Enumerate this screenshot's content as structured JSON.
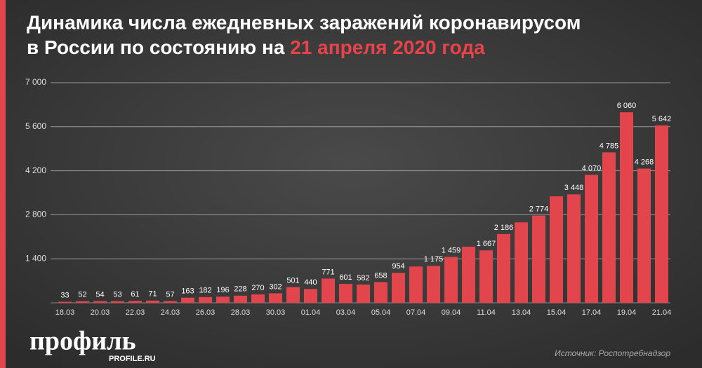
{
  "chart_data": {
    "type": "bar",
    "title": "Динамика числа ежедневных заражений коронавирусом",
    "subtitle": "в России по состоянию на",
    "subtitle_highlight": "21 апреля 2020 года",
    "categories": [
      "18.03",
      null,
      "20.03",
      null,
      "22.03",
      null,
      "24.03",
      null,
      "26.03",
      null,
      "28.03",
      null,
      "30.03",
      null,
      "01.04",
      null,
      "03.04",
      null,
      "05.04",
      null,
      "07.04",
      null,
      "09.04",
      null,
      "11.04",
      null,
      "13.04",
      null,
      "15.04",
      null,
      "17.04",
      null,
      "19.04",
      null,
      "21.04"
    ],
    "values": [
      33,
      52,
      54,
      53,
      61,
      71,
      57,
      163,
      182,
      196,
      228,
      270,
      302,
      501,
      440,
      771,
      601,
      582,
      658,
      954,
      1154,
      1175,
      1459,
      1786,
      1667,
      2186,
      2558,
      2774,
      3388,
      3448,
      4070,
      4785,
      6060,
      4268,
      5642
    ],
    "value_labels": [
      "33",
      "52",
      "54",
      "53",
      "61",
      "71",
      "57",
      "163",
      "182",
      "196",
      "228",
      "270",
      "302",
      "501",
      "440",
      "771",
      "601",
      "582",
      "658",
      "954",
      null,
      "1 175",
      "1 459",
      null,
      "1 667",
      "2 186",
      null,
      "2 774",
      null,
      "3 448",
      "4 070",
      "4 785",
      "6 060",
      "4 268",
      "5 642"
    ],
    "color": "#e3454c",
    "ylim": [
      0,
      7000
    ],
    "yticks": [
      {
        "value": 1400,
        "label": "1 400"
      },
      {
        "value": 2800,
        "label": "2 800"
      },
      {
        "value": 4200,
        "label": "4 200"
      },
      {
        "value": 5600,
        "label": "5 600"
      },
      {
        "value": 7000,
        "label": "7 000"
      }
    ],
    "grid": true,
    "logo": "профиль",
    "logo_url": "PROFILE.RU",
    "source": "Источник: Роспотребнадзор"
  }
}
